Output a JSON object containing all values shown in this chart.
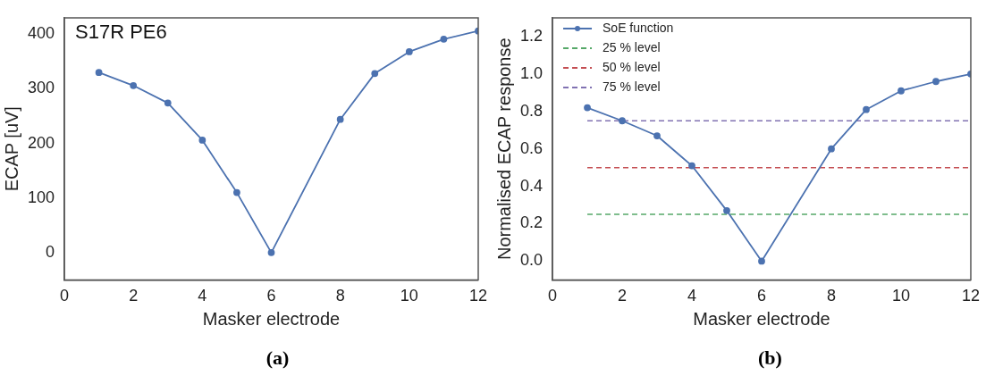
{
  "chart_data": [
    {
      "type": "line",
      "xlabel": "Masker electrode",
      "ylabel": "ECAP [uV]",
      "annotations": [
        "S17R PE6",
        "(a)"
      ],
      "x": [
        1,
        2,
        3,
        4,
        5,
        6,
        8,
        9,
        10,
        11,
        12
      ],
      "series": [
        {
          "color": "#4c72b0",
          "values": [
            330,
            306,
            274,
            206,
            110,
            0,
            244,
            328,
            368,
            391,
            406
          ]
        }
      ],
      "xlim": [
        0,
        12
      ],
      "xticks": [
        0,
        2,
        4,
        6,
        8,
        10,
        12
      ],
      "ylim": [
        -50,
        430
      ],
      "yticks": [
        0,
        100,
        200,
        300,
        400
      ],
      "grid": false,
      "legend": false,
      "marker": "circle",
      "line_style": "solid"
    },
    {
      "type": "line",
      "xlabel": "Masker electrode",
      "ylabel": "Normalised ECAP response",
      "annotations": [
        "(b)"
      ],
      "x": [
        1,
        2,
        3,
        4,
        5,
        6,
        8,
        9,
        10,
        11,
        12
      ],
      "series": [
        {
          "name": "SoE function",
          "color": "#4c72b0",
          "values": [
            0.82,
            0.75,
            0.67,
            0.51,
            0.27,
            0,
            0.6,
            0.81,
            0.91,
            0.96,
            1.0
          ]
        }
      ],
      "ref_lines": [
        {
          "axis": "y",
          "value": 0.25,
          "label": "25 % level",
          "color": "#55a868",
          "line_style": "dashed"
        },
        {
          "axis": "y",
          "value": 0.5,
          "label": "50 % level",
          "color": "#c44e52",
          "line_style": "dashed"
        },
        {
          "axis": "y",
          "value": 0.75,
          "label": "75 % level",
          "color": "#8172b2",
          "line_style": "dashed"
        }
      ],
      "xlim": [
        0,
        12
      ],
      "xticks": [
        0,
        2,
        4,
        6,
        8,
        10,
        12
      ],
      "ylim": [
        -0.1,
        1.3
      ],
      "yticks": [
        {
          "value": 0,
          "label": "0.0"
        },
        0.2,
        0.4,
        0.6,
        0.8,
        {
          "value": 1,
          "label": "1.0"
        },
        1.2
      ],
      "grid": false,
      "legend": "top left",
      "marker": "circle",
      "line_style": "solid"
    }
  ]
}
